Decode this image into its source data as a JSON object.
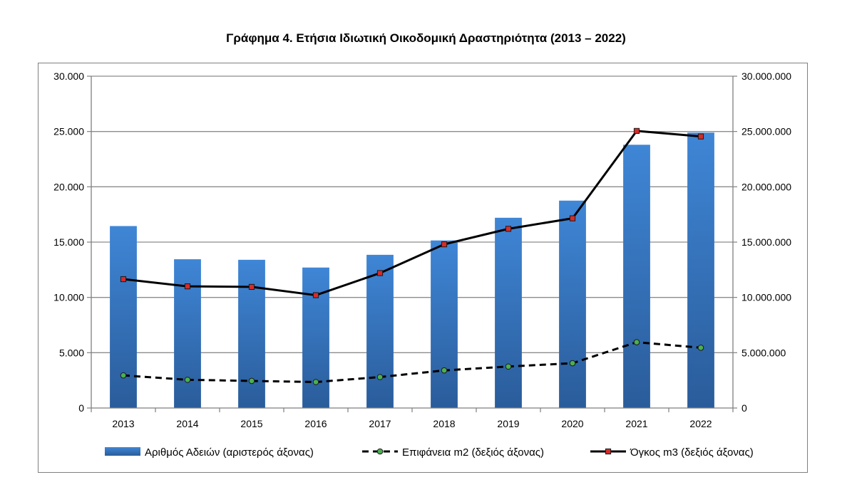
{
  "chart_data": {
    "type": "bar",
    "title": "Γράφημα 4. Ετήσια Ιδιωτική Οικοδομική Δραστηριότητα (2013 – 2022)",
    "categories": [
      "2013",
      "2014",
      "2015",
      "2016",
      "2017",
      "2018",
      "2019",
      "2020",
      "2021",
      "2022"
    ],
    "left_axis": {
      "ylim": [
        0,
        30000
      ],
      "tick_labels": [
        "0",
        "5.000",
        "10.000",
        "15.000",
        "20.000",
        "25.000",
        "30.000"
      ],
      "tick_values": [
        0,
        5000,
        10000,
        15000,
        20000,
        25000,
        30000
      ]
    },
    "right_axis": {
      "ylim": [
        0,
        30000000
      ],
      "tick_labels": [
        "0",
        "5.000.000",
        "10.000.000",
        "15.000.000",
        "20.000.000",
        "25.000.000",
        "30.000.000"
      ],
      "tick_values": [
        0,
        5000000,
        10000000,
        15000000,
        20000000,
        25000000,
        30000000
      ]
    },
    "grid": true,
    "legend_position": "bottom",
    "series": [
      {
        "name": "Αριθμός Αδειών (αριστερός άξονας)",
        "type": "bar",
        "axis": "left",
        "color": "#3a78c4",
        "values": [
          16450,
          13450,
          13400,
          12700,
          13850,
          15150,
          17200,
          18750,
          23800,
          24900
        ]
      },
      {
        "name": "Επιφάνεια m2 (δεξιός άξονας)",
        "type": "line",
        "style": "dashed",
        "axis": "right",
        "color": "#000000",
        "marker_color": "#4caf50",
        "values": [
          2950000,
          2550000,
          2450000,
          2350000,
          2800000,
          3400000,
          3750000,
          4050000,
          5950000,
          5450000
        ]
      },
      {
        "name": "Όγκος m3 (δεξιός άξονας)",
        "type": "line",
        "style": "solid",
        "axis": "right",
        "color": "#000000",
        "marker_color": "#d62b2b",
        "values": [
          11650000,
          11000000,
          10950000,
          10200000,
          12200000,
          14800000,
          16200000,
          17150000,
          25050000,
          24550000
        ]
      }
    ]
  }
}
